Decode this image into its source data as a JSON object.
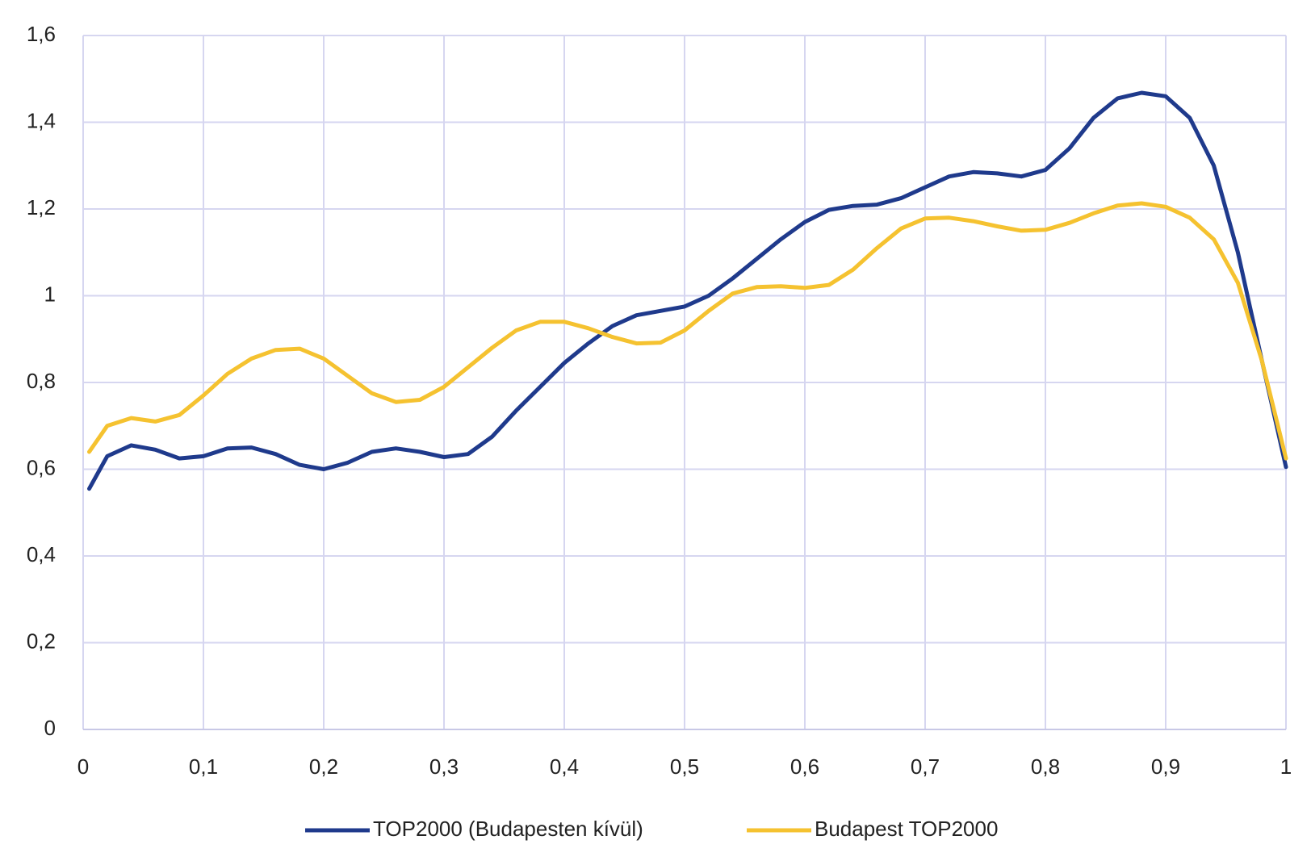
{
  "chart_data": {
    "type": "line",
    "x": [
      0.005,
      0.02,
      0.04,
      0.06,
      0.08,
      0.1,
      0.12,
      0.14,
      0.16,
      0.18,
      0.2,
      0.22,
      0.24,
      0.26,
      0.28,
      0.3,
      0.32,
      0.34,
      0.36,
      0.38,
      0.4,
      0.42,
      0.44,
      0.46,
      0.48,
      0.5,
      0.52,
      0.54,
      0.56,
      0.58,
      0.6,
      0.62,
      0.64,
      0.66,
      0.68,
      0.7,
      0.72,
      0.74,
      0.76,
      0.78,
      0.8,
      0.82,
      0.84,
      0.86,
      0.88,
      0.9,
      0.92,
      0.94,
      0.96,
      0.98,
      1.0
    ],
    "series": [
      {
        "name": "TOP2000 (Budapesten kívül)",
        "color": "#1f3a8c",
        "values": [
          0.555,
          0.63,
          0.655,
          0.645,
          0.625,
          0.63,
          0.648,
          0.65,
          0.635,
          0.61,
          0.6,
          0.615,
          0.64,
          0.648,
          0.64,
          0.628,
          0.635,
          0.675,
          0.735,
          0.79,
          0.845,
          0.89,
          0.93,
          0.955,
          0.965,
          0.975,
          1.0,
          1.04,
          1.085,
          1.13,
          1.17,
          1.198,
          1.207,
          1.21,
          1.225,
          1.25,
          1.275,
          1.285,
          1.282,
          1.275,
          1.29,
          1.34,
          1.41,
          1.455,
          1.468,
          1.46,
          1.41,
          1.3,
          1.1,
          0.85,
          0.605
        ]
      },
      {
        "name": "Budapest TOP2000",
        "color": "#f5c230",
        "values": [
          0.64,
          0.7,
          0.718,
          0.71,
          0.725,
          0.77,
          0.82,
          0.855,
          0.875,
          0.878,
          0.855,
          0.815,
          0.775,
          0.755,
          0.76,
          0.79,
          0.835,
          0.88,
          0.92,
          0.94,
          0.94,
          0.925,
          0.905,
          0.89,
          0.892,
          0.92,
          0.965,
          1.005,
          1.02,
          1.022,
          1.018,
          1.025,
          1.06,
          1.11,
          1.155,
          1.178,
          1.18,
          1.172,
          1.16,
          1.15,
          1.152,
          1.168,
          1.19,
          1.208,
          1.213,
          1.205,
          1.18,
          1.13,
          1.03,
          0.85,
          0.625
        ]
      }
    ],
    "xlim": [
      0,
      1
    ],
    "xticks": [
      0,
      {
        "value": 0.1,
        "label": "0,1"
      },
      {
        "value": 0.2,
        "label": "0,2"
      },
      {
        "value": 0.3,
        "label": "0,3"
      },
      {
        "value": 0.4,
        "label": "0,4"
      },
      {
        "value": 0.5,
        "label": "0,5"
      },
      {
        "value": 0.6,
        "label": "0,6"
      },
      {
        "value": 0.7,
        "label": "0,7"
      },
      {
        "value": 0.8,
        "label": "0,8"
      },
      {
        "value": 0.9,
        "label": "0,9"
      },
      1
    ],
    "ylim": [
      0,
      1.6
    ],
    "yticks": [
      0,
      {
        "value": 0.2,
        "label": "0,2"
      },
      {
        "value": 0.4,
        "label": "0,4"
      },
      {
        "value": 0.6,
        "label": "0,6"
      },
      {
        "value": 0.8,
        "label": "0,8"
      },
      1,
      {
        "value": 1.2,
        "label": "1,2"
      },
      {
        "value": 1.4,
        "label": "1,4"
      },
      {
        "value": 1.6,
        "label": "1,6"
      }
    ],
    "grid": true,
    "legend": "bottom"
  }
}
